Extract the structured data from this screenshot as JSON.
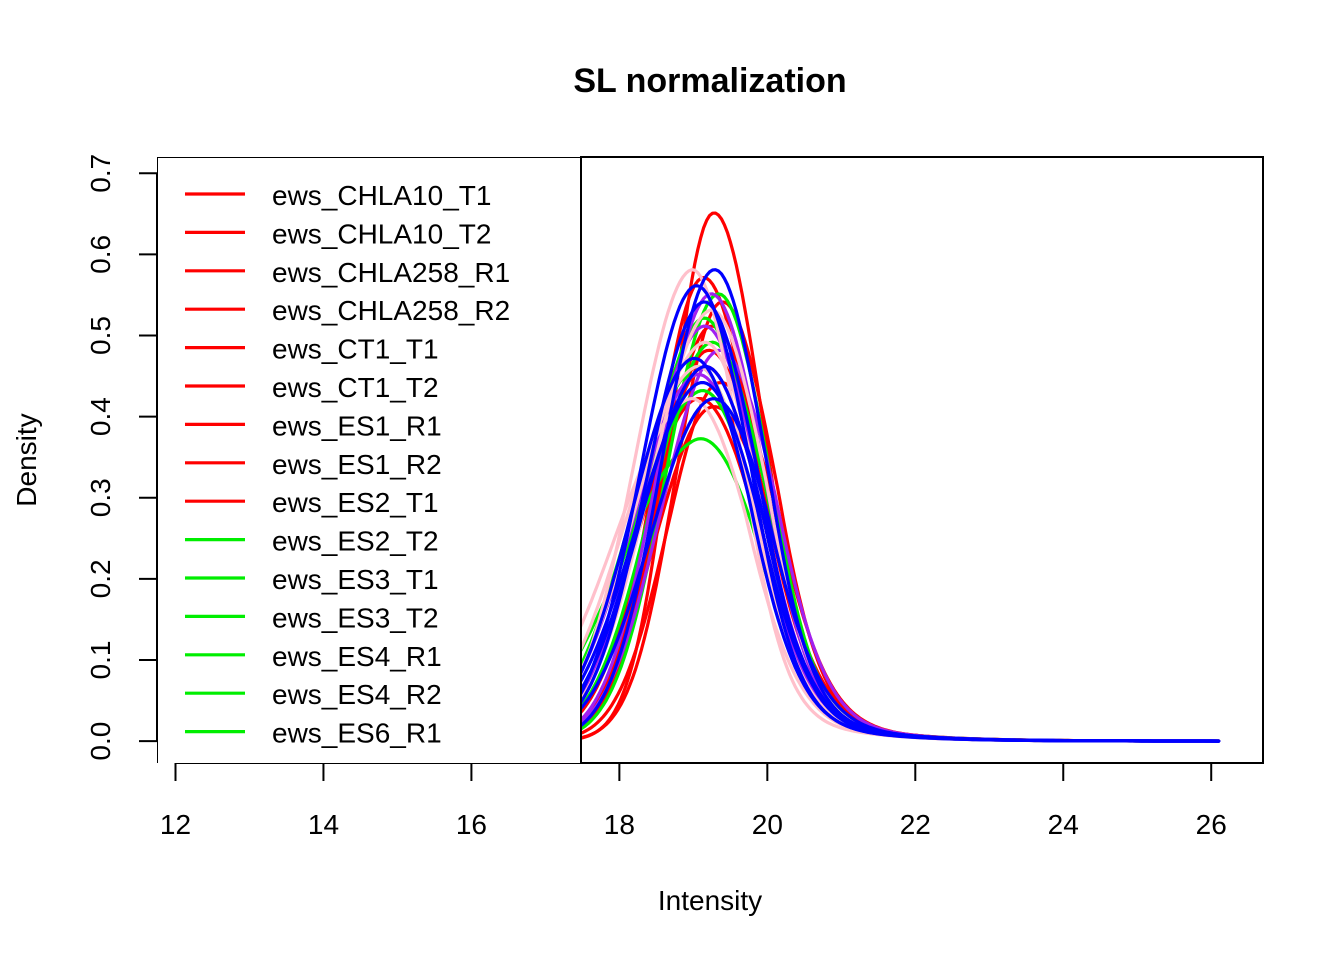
{
  "chart_data": {
    "type": "line",
    "title": "SL normalization",
    "xlabel": "Intensity",
    "ylabel": "Density",
    "xlim": [
      11.75,
      26.7
    ],
    "ylim": [
      -0.027,
      0.72
    ],
    "x_ticks": [
      12,
      14,
      16,
      18,
      20,
      22,
      24,
      26
    ],
    "y_ticks": [
      0.0,
      0.1,
      0.2,
      0.3,
      0.4,
      0.5,
      0.6,
      0.7
    ],
    "y_tick_labels": [
      "0.0",
      "0.1",
      "0.2",
      "0.3",
      "0.4",
      "0.5",
      "0.6",
      "0.7"
    ],
    "legend_position": "top-left",
    "legend_clipped": true,
    "legend": [
      {
        "label": "ews_CHLA10_T1",
        "color": "#ff0000"
      },
      {
        "label": "ews_CHLA10_T2",
        "color": "#ff0000"
      },
      {
        "label": "ews_CHLA258_R1",
        "color": "#ff0000"
      },
      {
        "label": "ews_CHLA258_R2",
        "color": "#ff0000"
      },
      {
        "label": "ews_CT1_T1",
        "color": "#ff0000"
      },
      {
        "label": "ews_CT1_T2",
        "color": "#ff0000"
      },
      {
        "label": "ews_ES1_R1",
        "color": "#ff0000"
      },
      {
        "label": "ews_ES1_R2",
        "color": "#ff0000"
      },
      {
        "label": "ews_ES2_T1",
        "color": "#ff0000"
      },
      {
        "label": "ews_ES2_T2",
        "color": "#00ee00"
      },
      {
        "label": "ews_ES3_T1",
        "color": "#00ee00"
      },
      {
        "label": "ews_ES3_T2",
        "color": "#00ee00"
      },
      {
        "label": "ews_ES4_R1",
        "color": "#00ee00"
      },
      {
        "label": "ews_ES4_R2",
        "color": "#00ee00"
      },
      {
        "label": "ews_ES6_R1",
        "color": "#00ee00"
      }
    ],
    "series": [
      {
        "color": "#ff0000",
        "peak_x": 19.25,
        "peak_y": 0.69,
        "left_w": 0.55,
        "right_w": 0.62
      },
      {
        "color": "#ff0000",
        "peak_x": 19.1,
        "peak_y": 0.61,
        "left_w": 0.62,
        "right_w": 0.66
      },
      {
        "color": "#ff0000",
        "peak_x": 19.2,
        "peak_y": 0.55,
        "left_w": 0.66,
        "right_w": 0.7
      },
      {
        "color": "#ff0000",
        "peak_x": 19.15,
        "peak_y": 0.52,
        "left_w": 0.68,
        "right_w": 0.72
      },
      {
        "color": "#ff0000",
        "peak_x": 19.1,
        "peak_y": 0.5,
        "left_w": 0.72,
        "right_w": 0.72
      },
      {
        "color": "#ff0000",
        "peak_x": 19.3,
        "peak_y": 0.48,
        "left_w": 0.66,
        "right_w": 0.74
      },
      {
        "color": "#ff0000",
        "peak_x": 19.0,
        "peak_y": 0.46,
        "left_w": 0.78,
        "right_w": 0.76
      },
      {
        "color": "#ff0000",
        "peak_x": 19.2,
        "peak_y": 0.45,
        "left_w": 0.74,
        "right_w": 0.76
      },
      {
        "color": "#ff0000",
        "peak_x": 19.35,
        "peak_y": 0.58,
        "left_w": 0.6,
        "right_w": 0.66
      },
      {
        "color": "#00ee00",
        "peak_x": 19.3,
        "peak_y": 0.59,
        "left_w": 0.68,
        "right_w": 0.64
      },
      {
        "color": "#00ee00",
        "peak_x": 19.1,
        "peak_y": 0.56,
        "left_w": 0.75,
        "right_w": 0.68
      },
      {
        "color": "#00ee00",
        "peak_x": 19.2,
        "peak_y": 0.53,
        "left_w": 0.78,
        "right_w": 0.7
      },
      {
        "color": "#00ee00",
        "peak_x": 19.0,
        "peak_y": 0.5,
        "left_w": 0.86,
        "right_w": 0.72
      },
      {
        "color": "#00ee00",
        "peak_x": 19.05,
        "peak_y": 0.47,
        "left_w": 0.9,
        "right_w": 0.74
      },
      {
        "color": "#00ee00",
        "peak_x": 19.0,
        "peak_y": 0.41,
        "left_w": 1.0,
        "right_w": 0.78
      },
      {
        "color": "#a020f0",
        "peak_x": 19.2,
        "peak_y": 0.59,
        "left_w": 0.7,
        "right_w": 0.66
      },
      {
        "color": "#a020f0",
        "peak_x": 19.1,
        "peak_y": 0.55,
        "left_w": 0.78,
        "right_w": 0.7
      },
      {
        "color": "#a020f0",
        "peak_x": 19.3,
        "peak_y": 0.52,
        "left_w": 0.74,
        "right_w": 0.72
      },
      {
        "color": "#a020f0",
        "peak_x": 19.0,
        "peak_y": 0.49,
        "left_w": 0.84,
        "right_w": 0.74
      },
      {
        "color": "#ffc0cb",
        "peak_x": 18.95,
        "peak_y": 0.62,
        "left_w": 0.75,
        "right_w": 0.62
      },
      {
        "color": "#ffc0cb",
        "peak_x": 19.2,
        "peak_y": 0.57,
        "left_w": 0.8,
        "right_w": 0.68
      },
      {
        "color": "#ffc0cb",
        "peak_x": 19.1,
        "peak_y": 0.53,
        "left_w": 0.88,
        "right_w": 0.7
      },
      {
        "color": "#ffc0cb",
        "peak_x": 19.0,
        "peak_y": 0.5,
        "left_w": 0.92,
        "right_w": 0.72
      },
      {
        "color": "#ffc0cb",
        "peak_x": 18.9,
        "peak_y": 0.46,
        "left_w": 0.98,
        "right_w": 0.74
      },
      {
        "color": "#0000ff",
        "peak_x": 19.25,
        "peak_y": 0.62,
        "left_w": 0.68,
        "right_w": 0.64
      },
      {
        "color": "#0000ff",
        "peak_x": 19.0,
        "peak_y": 0.6,
        "left_w": 0.72,
        "right_w": 0.68
      },
      {
        "color": "#0000ff",
        "peak_x": 19.1,
        "peak_y": 0.58,
        "left_w": 0.74,
        "right_w": 0.68
      },
      {
        "color": "#0000ff",
        "peak_x": 18.95,
        "peak_y": 0.51,
        "left_w": 0.8,
        "right_w": 0.72
      },
      {
        "color": "#0000ff",
        "peak_x": 19.1,
        "peak_y": 0.5,
        "left_w": 0.82,
        "right_w": 0.72
      },
      {
        "color": "#0000ff",
        "peak_x": 19.05,
        "peak_y": 0.48,
        "left_w": 0.84,
        "right_w": 0.74
      },
      {
        "color": "#0000ff",
        "peak_x": 19.2,
        "peak_y": 0.46,
        "left_w": 0.8,
        "right_w": 0.74
      }
    ]
  }
}
